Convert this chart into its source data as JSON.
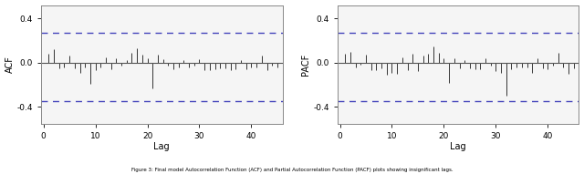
{
  "acf_title": "ACF",
  "pacf_title": "PACF",
  "xlabel": "Lag",
  "ylim": [
    -0.55,
    0.52
  ],
  "yticks": [
    -0.4,
    0.0,
    0.4
  ],
  "yticklabels": [
    "-0.4",
    "0.0",
    "0.4"
  ],
  "xlim": [
    -0.5,
    46
  ],
  "xticks": [
    0,
    10,
    20,
    30,
    40
  ],
  "conf_upper": 0.27,
  "conf_lower": -0.35,
  "bg_color": "#ffffff",
  "plot_bg": "#f5f5f5",
  "line_color": "#555555",
  "conf_color": "#4444bb",
  "bar_color": "#333333",
  "caption": "Figure 3: Final model Autocorrelation Function (ACF) and Partial Autocorrelation Function (PACF) plots showing insignificant lags.",
  "acf_values": [
    0.08,
    0.12,
    -0.05,
    -0.04,
    0.06,
    -0.05,
    -0.09,
    -0.04,
    -0.19,
    -0.07,
    -0.04,
    0.05,
    -0.06,
    0.04,
    -0.03,
    0.02,
    0.09,
    0.13,
    0.07,
    0.04,
    -0.23,
    0.07,
    0.03,
    -0.03,
    -0.06,
    -0.04,
    0.02,
    -0.04,
    -0.03,
    0.03,
    -0.07,
    -0.07,
    -0.06,
    -0.05,
    -0.05,
    -0.07,
    -0.06,
    0.02,
    -0.06,
    -0.04,
    -0.04,
    0.06,
    -0.07,
    -0.03,
    -0.04
  ],
  "pacf_values": [
    0.08,
    0.1,
    -0.04,
    -0.02,
    0.07,
    -0.07,
    -0.07,
    -0.05,
    -0.11,
    -0.09,
    -0.1,
    0.05,
    -0.07,
    0.08,
    -0.08,
    0.06,
    0.08,
    0.15,
    0.09,
    0.04,
    -0.18,
    0.04,
    -0.05,
    0.02,
    -0.05,
    -0.06,
    -0.06,
    0.04,
    -0.03,
    -0.08,
    -0.09,
    -0.3,
    -0.06,
    -0.04,
    -0.04,
    -0.04,
    -0.09,
    0.04,
    -0.05,
    -0.06,
    -0.03,
    0.09,
    -0.04,
    -0.1,
    -0.05
  ]
}
